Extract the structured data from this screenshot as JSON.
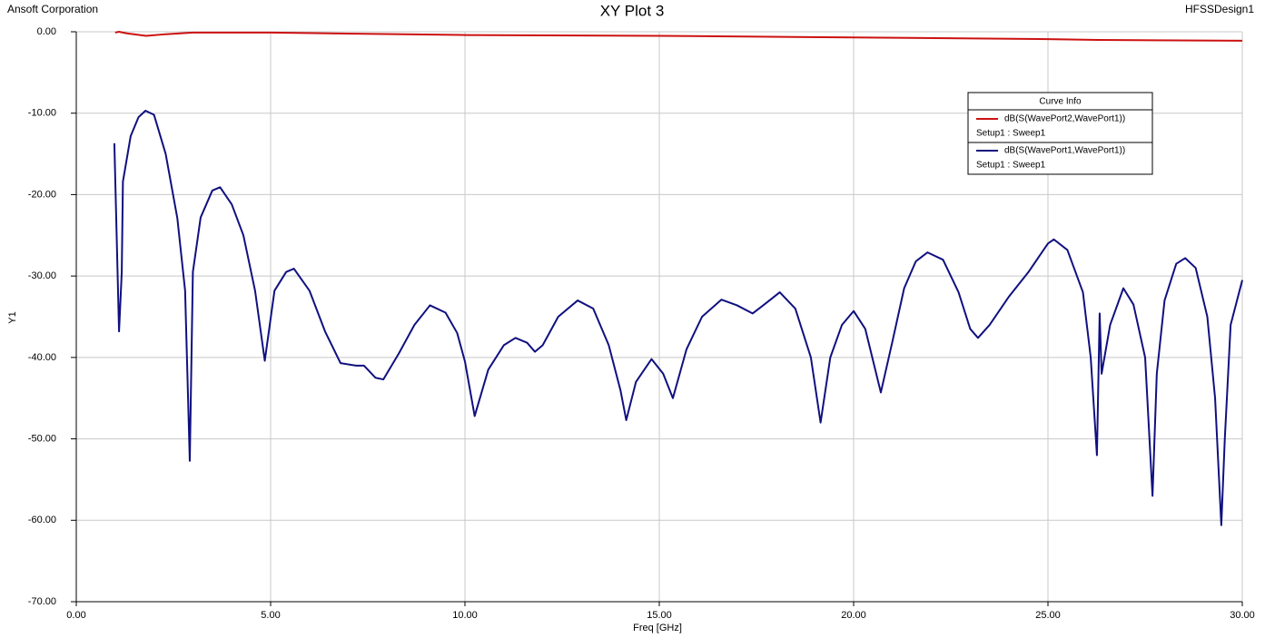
{
  "chart_data": {
    "type": "line",
    "company": "Ansoft Corporation",
    "title": "XY Plot 3",
    "design": "HFSSDesign1",
    "xlabel": "Freq [GHz]",
    "ylabel": "Y1",
    "legend_title": "Curve Info",
    "xlim": [
      0,
      30
    ],
    "ylim": [
      -70,
      0
    ],
    "xticks": [
      {
        "value": 0,
        "label": "0.00"
      },
      {
        "value": 5,
        "label": "5.00"
      },
      {
        "value": 10,
        "label": "10.00"
      },
      {
        "value": 15,
        "label": "15.00"
      },
      {
        "value": 20,
        "label": "20.00"
      },
      {
        "value": 25,
        "label": "25.00"
      },
      {
        "value": 30,
        "label": "30.00"
      }
    ],
    "yticks": [
      {
        "value": 0,
        "label": "0.00"
      },
      {
        "value": -10,
        "label": "-10.00"
      },
      {
        "value": -20,
        "label": "-20.00"
      },
      {
        "value": -30,
        "label": "-30.00"
      },
      {
        "value": -40,
        "label": "-40.00"
      },
      {
        "value": -50,
        "label": "-50.00"
      },
      {
        "value": -60,
        "label": "-60.00"
      },
      {
        "value": -70,
        "label": "-70.00"
      }
    ],
    "grid": true,
    "series": [
      {
        "name": "dB(S(WavePort2,WavePort1))",
        "setup": "Setup1 : Sweep1",
        "color": "#cc1111",
        "x": [
          1.0,
          1.1,
          1.3,
          1.8,
          2.3,
          3.0,
          5.0,
          10.0,
          15.0,
          20.0,
          25.0,
          26.3,
          30.0
        ],
        "values": [
          -0.1,
          0.0,
          -0.2,
          -0.5,
          -0.3,
          -0.1,
          -0.1,
          -0.4,
          -0.5,
          -0.7,
          -0.9,
          -1.0,
          -1.1
        ]
      },
      {
        "name": "dB(S(WavePort1,WavePort1))",
        "setup": "Setup1 : Sweep1",
        "color": "#101080",
        "x": [
          0.98,
          1.1,
          1.17,
          1.2,
          1.4,
          1.6,
          1.78,
          2.0,
          2.3,
          2.6,
          2.8,
          2.92,
          3.0,
          3.2,
          3.5,
          3.7,
          4.0,
          4.3,
          4.6,
          4.85,
          5.1,
          5.4,
          5.6,
          6.0,
          6.4,
          6.8,
          7.2,
          7.4,
          7.7,
          7.9,
          8.3,
          8.7,
          9.1,
          9.5,
          9.8,
          10.0,
          10.25,
          10.6,
          11.0,
          11.3,
          11.6,
          11.8,
          12.0,
          12.4,
          12.9,
          13.3,
          13.7,
          14.0,
          14.15,
          14.4,
          14.8,
          15.1,
          15.35,
          15.7,
          16.1,
          16.6,
          17.0,
          17.4,
          17.7,
          18.1,
          18.5,
          18.9,
          19.15,
          19.4,
          19.7,
          20.0,
          20.3,
          20.7,
          21.0,
          21.3,
          21.6,
          21.9,
          22.3,
          22.7,
          23.0,
          23.2,
          23.5,
          24.0,
          24.5,
          25.0,
          25.15,
          25.5,
          25.9,
          26.1,
          26.26,
          26.33,
          26.38,
          26.6,
          26.94,
          27.2,
          27.5,
          27.69,
          27.8,
          28.0,
          28.3,
          28.53,
          28.8,
          29.1,
          29.3,
          29.46,
          29.55,
          29.7,
          30.0
        ],
        "values": [
          -13.7,
          -36.8,
          -29.5,
          -18.4,
          -12.8,
          -10.5,
          -9.7,
          -10.2,
          -15,
          -22.9,
          -31.8,
          -52.7,
          -29.5,
          -22.8,
          -19.5,
          -19.1,
          -21.2,
          -25,
          -31.8,
          -40.4,
          -31.8,
          -29.5,
          -29.1,
          -31.8,
          -36.8,
          -40.7,
          -41.0,
          -41.0,
          -42.5,
          -42.7,
          -39.5,
          -36,
          -33.6,
          -34.5,
          -37,
          -40.5,
          -47.2,
          -41.5,
          -38.5,
          -37.6,
          -38.2,
          -39.3,
          -38.5,
          -35,
          -33.0,
          -34,
          -38.5,
          -44,
          -47.7,
          -43,
          -40.2,
          -42,
          -45,
          -39,
          -35,
          -32.9,
          -33.6,
          -34.6,
          -33.5,
          -32.0,
          -34,
          -40,
          -48,
          -40,
          -36,
          -34.3,
          -36.5,
          -44.3,
          -38,
          -31.5,
          -28.2,
          -27.1,
          -28,
          -32,
          -36.5,
          -37.6,
          -36,
          -32.5,
          -29.5,
          -26.0,
          -25.5,
          -26.8,
          -32,
          -40,
          -52,
          -34.6,
          -42,
          -36,
          -31.5,
          -33.5,
          -40,
          -57,
          -42,
          -33,
          -28.5,
          -27.8,
          -29,
          -35,
          -45,
          -60.6,
          -50,
          -36,
          -30.5
        ]
      }
    ]
  }
}
